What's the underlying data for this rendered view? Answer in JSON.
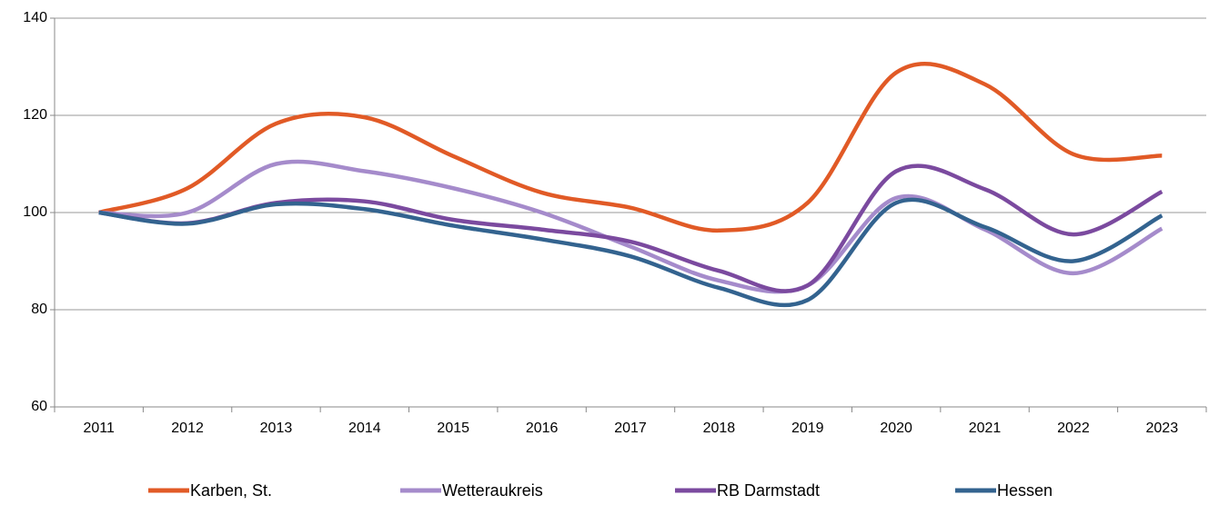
{
  "chart_data": {
    "type": "line",
    "categories": [
      "2011",
      "2012",
      "2013",
      "2014",
      "2015",
      "2016",
      "2017",
      "2018",
      "2019",
      "2020",
      "2021",
      "2022",
      "2023"
    ],
    "series": [
      {
        "name": "Karben, St.",
        "color": "#e15a26",
        "values": [
          100,
          105,
          118.3,
          119.6,
          111.6,
          104.1,
          101,
          96.3,
          102,
          128.8,
          126.4,
          112,
          111.7
        ]
      },
      {
        "name": "Wetteraukreis",
        "color": "#a58bcb",
        "values": [
          100,
          100,
          110,
          108.5,
          105,
          100,
          93,
          86,
          85,
          103,
          96.5,
          87.5,
          96.7
        ]
      },
      {
        "name": "RB Darmstadt",
        "color": "#7b4a9f",
        "values": [
          100,
          97.8,
          102,
          102.3,
          98.5,
          96.5,
          94,
          88,
          85,
          108.5,
          104.8,
          95.5,
          104.3
        ]
      },
      {
        "name": "Hessen",
        "color": "#33638f",
        "values": [
          100,
          97.7,
          101.7,
          100.7,
          97.3,
          94.5,
          91,
          84.5,
          82,
          102,
          97,
          90,
          99.4
        ]
      }
    ],
    "ylim": [
      60,
      140
    ],
    "yticks": [
      60,
      80,
      100,
      120,
      140
    ],
    "grid": true,
    "legend": "bottom"
  }
}
